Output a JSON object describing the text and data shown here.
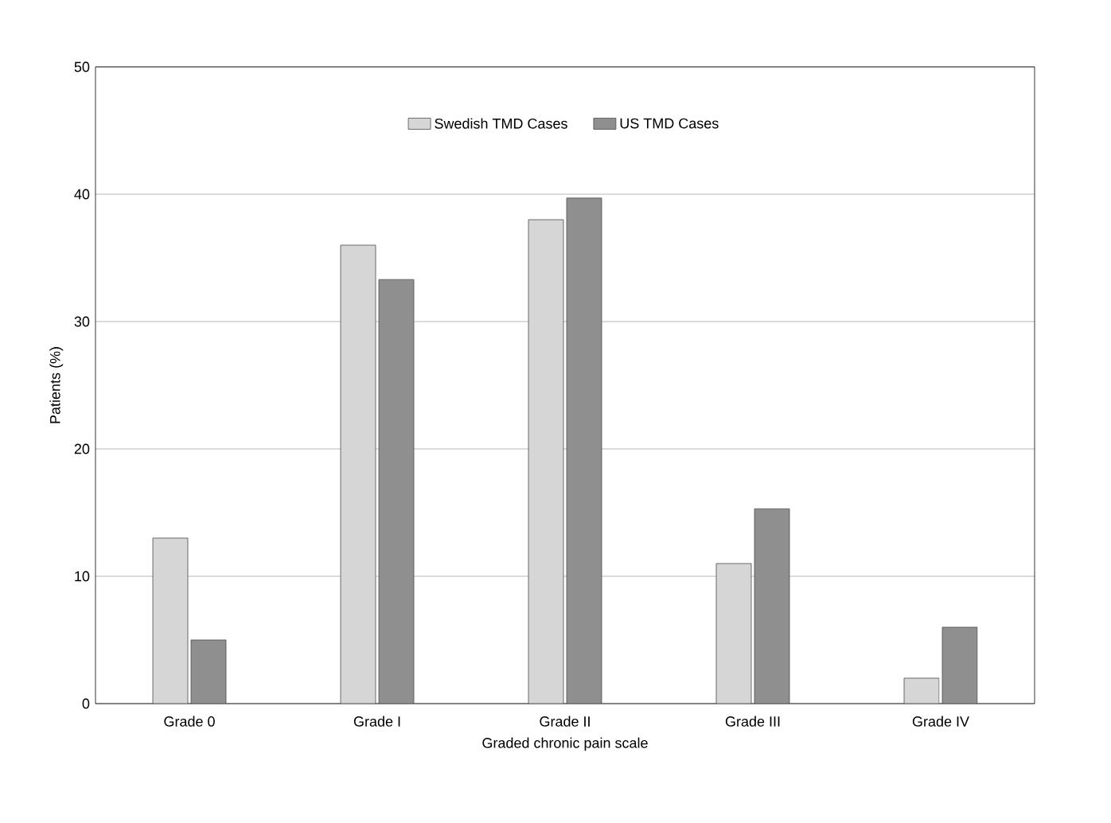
{
  "chart_data": {
    "type": "bar",
    "xlabel": "Graded chronic pain scale",
    "ylabel": "Patients (%)",
    "categories": [
      "Grade 0",
      "Grade I",
      "Grade II",
      "Grade III",
      "Grade IV"
    ],
    "series": [
      {
        "name": "Swedish TMD Cases",
        "color": "#d6d6d6",
        "values": [
          13,
          36,
          38,
          11,
          2
        ]
      },
      {
        "name": "US TMD Cases",
        "color": "#8f8f8f",
        "values": [
          5,
          33.3,
          39.7,
          15.3,
          6
        ]
      }
    ],
    "ylim": [
      0,
      50
    ],
    "yticks": [
      0,
      10,
      20,
      30,
      40,
      50
    ],
    "grid": "y",
    "legend": "top"
  }
}
